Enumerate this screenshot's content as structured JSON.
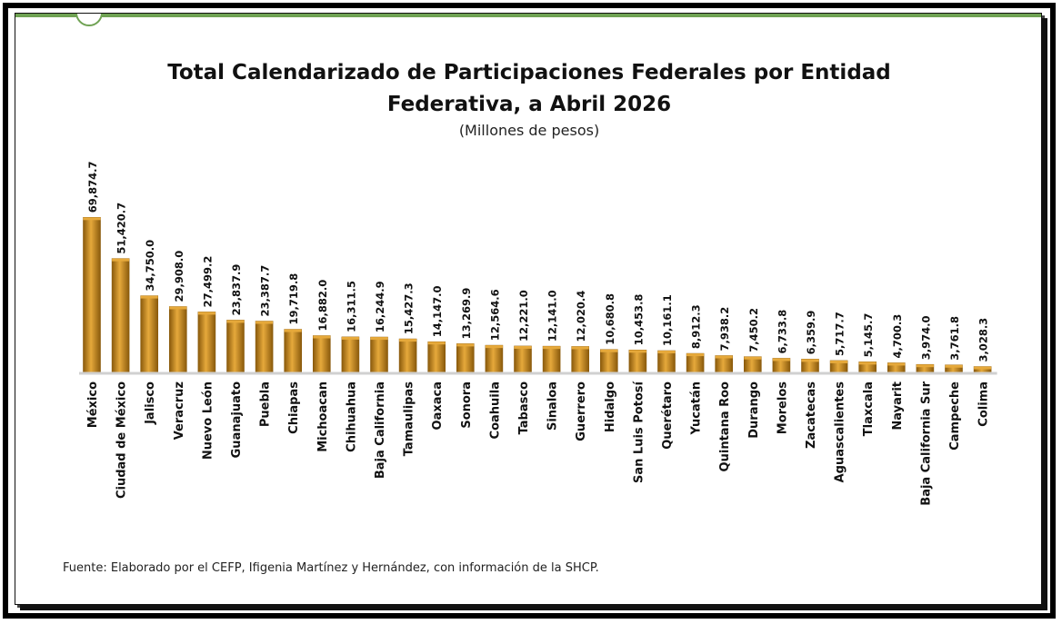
{
  "title_line1": "Total Calendarizado de Participaciones Federales por Entidad",
  "title_line2": "Federativa, a Abril 2026",
  "subtitle": "(Millones de pesos)",
  "source": "Fuente: Elaborado por el CEFP, Ifigenia Martínez y Hernández,  con información de la SHCP.",
  "colors": {
    "bar": "#c8891a",
    "bar_light": "#e6a93b",
    "bar_dark": "#8a5a0c",
    "accent": "#6fa253"
  },
  "chart_data": {
    "type": "bar",
    "title": "Total Calendarizado de Participaciones Federales por Entidad Federativa, a Abril 2026",
    "subtitle": "(Millones de pesos)",
    "xlabel": "",
    "ylabel": "",
    "ylim": [
      0,
      70000
    ],
    "grid": false,
    "legend": "none",
    "categories": [
      "México",
      "Ciudad de México",
      "Jalisco",
      "Veracruz",
      "Nuevo León",
      "Guanajuato",
      "Puebla",
      "Chiapas",
      "Michoacan",
      "Chihuahua",
      "Baja California",
      "Tamaulipas",
      "Oaxaca",
      "Sonora",
      "Coahuila",
      "Tabasco",
      "Sinaloa",
      "Guerrero",
      "Hidalgo",
      "San Luis Potosí",
      "Querétaro",
      "Yucatán",
      "Quintana Roo",
      "Durango",
      "Morelos",
      "Zacatecas",
      "Aguascalientes",
      "Tlaxcala",
      "Nayarit",
      "Baja California Sur",
      "Campeche",
      "Colima"
    ],
    "values": [
      69874.7,
      51420.7,
      34750.0,
      29908.0,
      27499.2,
      23837.9,
      23387.7,
      19719.8,
      16882.0,
      16311.5,
      16244.9,
      15427.3,
      14147.0,
      13269.9,
      12564.6,
      12221.0,
      12141.0,
      12020.4,
      10680.8,
      10453.8,
      10161.1,
      8912.3,
      7938.2,
      7450.2,
      6733.8,
      6359.9,
      5717.7,
      5145.7,
      4700.3,
      3974.0,
      3761.8,
      3028.3
    ],
    "value_labels": [
      "69,874.7",
      "51,420.7",
      "34,750.0",
      "29,908.0",
      "27,499.2",
      "23,837.9",
      "23,387.7",
      "19,719.8",
      "16,882.0",
      "16,311.5",
      "16,244.9",
      "15,427.3",
      "14,147.0",
      "13,269.9",
      "12,564.6",
      "12,221.0",
      "12,141.0",
      "12,020.4",
      "10,680.8",
      "10,453.8",
      "10,161.1",
      "8,912.3",
      "7,938.2",
      "7,450.2",
      "6,733.8",
      "6,359.9",
      "5,717.7",
      "5,145.7",
      "4,700.3",
      "3,974.0",
      "3,761.8",
      "3,028.3"
    ]
  }
}
